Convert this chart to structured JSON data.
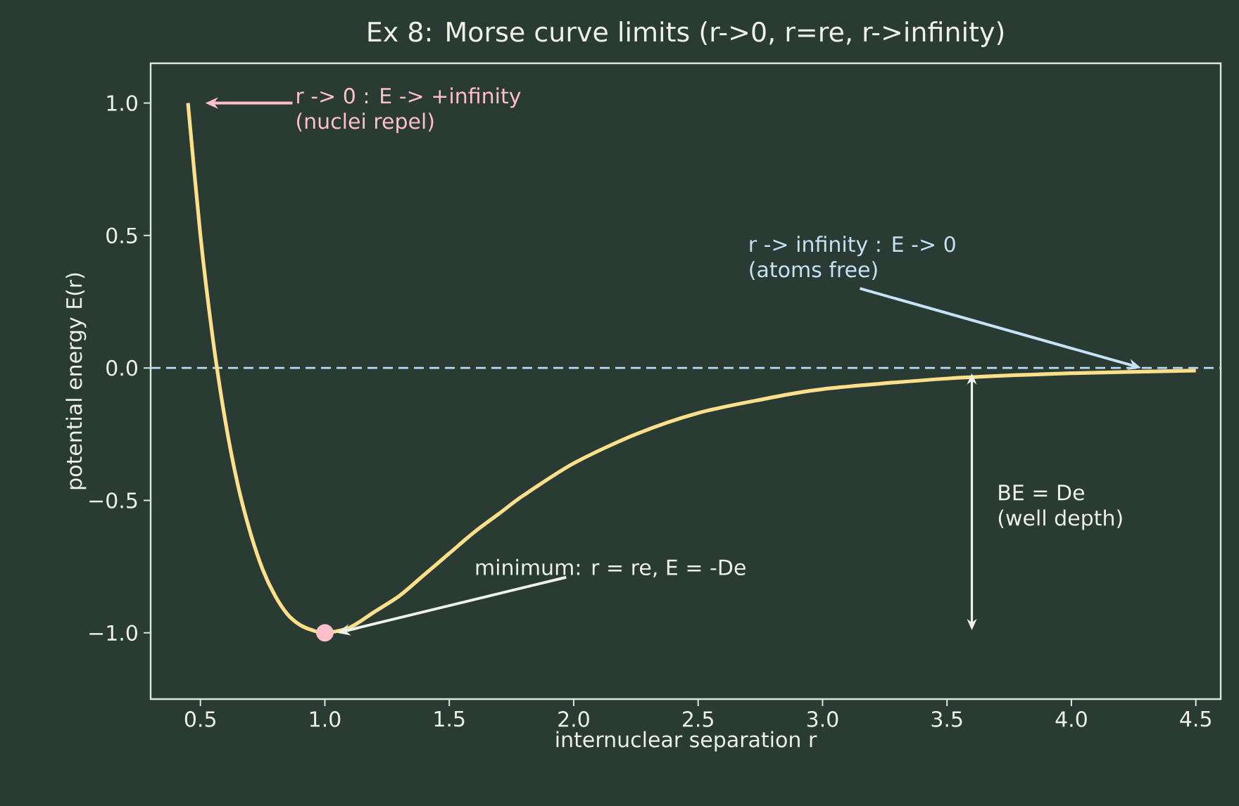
{
  "chart_data": {
    "type": "line",
    "title": "Ex 8: Morse curve limits (r->0, r=re, r->infinity)",
    "xlabel": "internuclear separation  r",
    "ylabel": "potential energy  E(r)",
    "xlim": [
      0.3,
      4.6
    ],
    "ylim": [
      -1.25,
      1.15
    ],
    "xticks": [
      {
        "value": 0.5,
        "label": "0.5"
      },
      {
        "value": 1,
        "label": "1.0"
      },
      {
        "value": 1.5,
        "label": "1.5"
      },
      {
        "value": 2,
        "label": "2.0"
      },
      {
        "value": 2.5,
        "label": "2.5"
      },
      {
        "value": 3,
        "label": "3.0"
      },
      {
        "value": 3.5,
        "label": "3.5"
      },
      {
        "value": 4,
        "label": "4.0"
      },
      {
        "value": 4.5,
        "label": "4.5"
      }
    ],
    "yticks": [
      {
        "value": -1,
        "label": "−1.0"
      },
      {
        "value": -0.5,
        "label": "−0.5"
      },
      {
        "value": 0,
        "label": "0.0"
      },
      {
        "value": 0.5,
        "label": "0.5"
      },
      {
        "value": 1,
        "label": "1.0"
      }
    ],
    "series": [
      {
        "color": "#ffe08a",
        "x": [
          0.45,
          0.5,
          0.55,
          0.6,
          0.65,
          0.7,
          0.75,
          0.8,
          0.85,
          0.9,
          0.95,
          1.0,
          1.1,
          1.2,
          1.3,
          1.4,
          1.5,
          1.6,
          1.7,
          1.8,
          2.0,
          2.25,
          2.5,
          2.75,
          3.0,
          3.5,
          4.0,
          4.5
        ],
        "values": [
          1.0,
          0.5,
          0.11,
          -0.2,
          -0.44,
          -0.62,
          -0.76,
          -0.86,
          -0.93,
          -0.97,
          -0.99,
          -1.0,
          -0.98,
          -0.92,
          -0.86,
          -0.78,
          -0.7,
          -0.62,
          -0.55,
          -0.48,
          -0.36,
          -0.25,
          -0.17,
          -0.12,
          -0.08,
          -0.04,
          -0.02,
          -0.01
        ]
      },
      {
        "type": "scatter",
        "color": "#ffc0cb",
        "marker": "circle",
        "x": [
          1.0
        ],
        "values": [
          -1.0
        ]
      }
    ],
    "ref_lines": [
      {
        "axis": "y",
        "value": 0,
        "color": "#b4dcf5",
        "line_style": "dashed"
      }
    ],
    "annotations": [
      "r -> 0 :  E -> +infinity",
      "(nuclei repel)",
      "r -> infinity :  E -> 0",
      {
        "text": "(atoms free)",
        "x": 4.28,
        "y": 0
      },
      {
        "text": "minimum: r = re,  E = -De",
        "x": 1.05,
        "y": -1.0
      },
      "BE = De",
      "(well depth)"
    ]
  }
}
